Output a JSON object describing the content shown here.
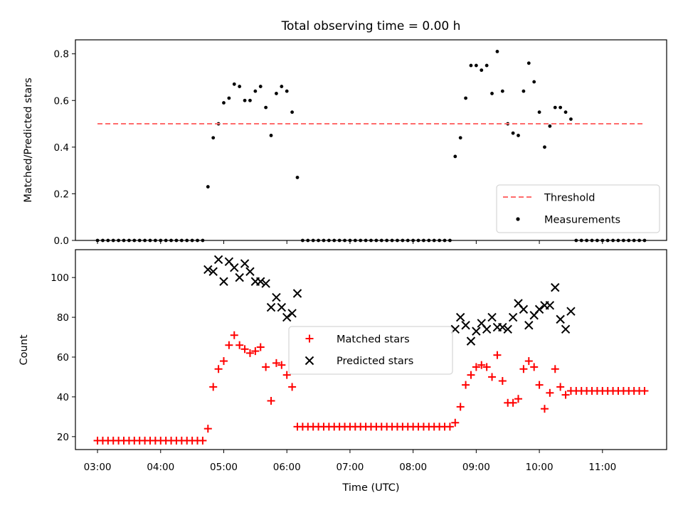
{
  "chart_data": [
    {
      "type": "scatter",
      "title": "Total observing time = 0.00 h",
      "ylabel": "Matched/Predicted stars",
      "xlim": [
        "02:39",
        "12:01"
      ],
      "ylim": [
        0,
        0.86
      ],
      "yticks": [
        0.0,
        0.2,
        0.4,
        0.6,
        0.8
      ],
      "ytick_labels": [
        "0.0",
        "0.2",
        "0.4",
        "0.6",
        "0.8"
      ],
      "legend": {
        "location": "lower right",
        "entries": [
          "Threshold",
          "Measurements"
        ]
      },
      "threshold": {
        "name": "Threshold",
        "value": 0.5,
        "color": "#ff6b6b",
        "style": "dashed",
        "x_range": [
          "03:00",
          "11:40"
        ]
      },
      "series": [
        {
          "name": "Measurements",
          "color": "#000000",
          "marker": "dot",
          "points": [
            [
              "03:00",
              0
            ],
            [
              "03:05",
              0
            ],
            [
              "03:10",
              0
            ],
            [
              "03:15",
              0
            ],
            [
              "03:20",
              0
            ],
            [
              "03:25",
              0
            ],
            [
              "03:30",
              0
            ],
            [
              "03:35",
              0
            ],
            [
              "03:40",
              0
            ],
            [
              "03:45",
              0
            ],
            [
              "03:50",
              0
            ],
            [
              "03:55",
              0
            ],
            [
              "04:00",
              0
            ],
            [
              "04:05",
              0
            ],
            [
              "04:10",
              0
            ],
            [
              "04:15",
              0
            ],
            [
              "04:20",
              0
            ],
            [
              "04:25",
              0
            ],
            [
              "04:30",
              0
            ],
            [
              "04:35",
              0
            ],
            [
              "04:40",
              0
            ],
            [
              "04:45",
              0.23
            ],
            [
              "04:50",
              0.44
            ],
            [
              "04:55",
              0.5
            ],
            [
              "05:00",
              0.59
            ],
            [
              "05:05",
              0.61
            ],
            [
              "05:10",
              0.67
            ],
            [
              "05:15",
              0.66
            ],
            [
              "05:20",
              0.6
            ],
            [
              "05:25",
              0.6
            ],
            [
              "05:30",
              0.64
            ],
            [
              "05:35",
              0.66
            ],
            [
              "05:40",
              0.57
            ],
            [
              "05:45",
              0.45
            ],
            [
              "05:50",
              0.63
            ],
            [
              "05:55",
              0.66
            ],
            [
              "06:00",
              0.64
            ],
            [
              "06:05",
              0.55
            ],
            [
              "06:10",
              0.27
            ],
            [
              "06:15",
              0
            ],
            [
              "06:20",
              0
            ],
            [
              "06:25",
              0
            ],
            [
              "06:30",
              0
            ],
            [
              "06:35",
              0
            ],
            [
              "06:40",
              0
            ],
            [
              "06:45",
              0
            ],
            [
              "06:50",
              0
            ],
            [
              "06:55",
              0
            ],
            [
              "07:00",
              0
            ],
            [
              "07:05",
              0
            ],
            [
              "07:10",
              0
            ],
            [
              "07:15",
              0
            ],
            [
              "07:20",
              0
            ],
            [
              "07:25",
              0
            ],
            [
              "07:30",
              0
            ],
            [
              "07:35",
              0
            ],
            [
              "07:40",
              0
            ],
            [
              "07:45",
              0
            ],
            [
              "07:50",
              0
            ],
            [
              "07:55",
              0
            ],
            [
              "08:00",
              0
            ],
            [
              "08:05",
              0
            ],
            [
              "08:10",
              0
            ],
            [
              "08:15",
              0
            ],
            [
              "08:20",
              0
            ],
            [
              "08:25",
              0
            ],
            [
              "08:30",
              0
            ],
            [
              "08:35",
              0
            ],
            [
              "08:40",
              0.36
            ],
            [
              "08:45",
              0.44
            ],
            [
              "08:50",
              0.61
            ],
            [
              "08:55",
              0.75
            ],
            [
              "09:00",
              0.75
            ],
            [
              "09:05",
              0.73
            ],
            [
              "09:10",
              0.75
            ],
            [
              "09:15",
              0.63
            ],
            [
              "09:20",
              0.81
            ],
            [
              "09:25",
              0.64
            ],
            [
              "09:30",
              0.5
            ],
            [
              "09:35",
              0.46
            ],
            [
              "09:40",
              0.45
            ],
            [
              "09:45",
              0.64
            ],
            [
              "09:50",
              0.76
            ],
            [
              "09:55",
              0.68
            ],
            [
              "10:00",
              0.55
            ],
            [
              "10:05",
              0.4
            ],
            [
              "10:10",
              0.49
            ],
            [
              "10:15",
              0.57
            ],
            [
              "10:20",
              0.57
            ],
            [
              "10:25",
              0.55
            ],
            [
              "10:30",
              0.52
            ],
            [
              "10:35",
              0
            ],
            [
              "10:40",
              0
            ],
            [
              "10:45",
              0
            ],
            [
              "10:50",
              0
            ],
            [
              "10:55",
              0
            ],
            [
              "11:00",
              0
            ],
            [
              "11:05",
              0
            ],
            [
              "11:10",
              0
            ],
            [
              "11:15",
              0
            ],
            [
              "11:20",
              0
            ],
            [
              "11:25",
              0
            ],
            [
              "11:30",
              0
            ],
            [
              "11:35",
              0
            ],
            [
              "11:40",
              0
            ]
          ]
        }
      ]
    },
    {
      "type": "scatter",
      "xlabel": "Time (UTC)",
      "ylabel": "Count",
      "xlim": [
        "02:39",
        "12:01"
      ],
      "ylim": [
        13.5,
        114
      ],
      "xticks": [
        "03:00",
        "04:00",
        "05:00",
        "06:00",
        "07:00",
        "08:00",
        "09:00",
        "10:00",
        "11:00"
      ],
      "yticks": [
        20,
        40,
        60,
        80,
        100
      ],
      "legend": {
        "location": "center",
        "entries": [
          "Matched stars",
          "Predicted stars"
        ]
      },
      "series": [
        {
          "name": "Matched stars",
          "color": "#ff0000",
          "marker": "plus",
          "points": [
            [
              "03:00",
              18
            ],
            [
              "03:05",
              18
            ],
            [
              "03:10",
              18
            ],
            [
              "03:15",
              18
            ],
            [
              "03:20",
              18
            ],
            [
              "03:25",
              18
            ],
            [
              "03:30",
              18
            ],
            [
              "03:35",
              18
            ],
            [
              "03:40",
              18
            ],
            [
              "03:45",
              18
            ],
            [
              "03:50",
              18
            ],
            [
              "03:55",
              18
            ],
            [
              "04:00",
              18
            ],
            [
              "04:05",
              18
            ],
            [
              "04:10",
              18
            ],
            [
              "04:15",
              18
            ],
            [
              "04:20",
              18
            ],
            [
              "04:25",
              18
            ],
            [
              "04:30",
              18
            ],
            [
              "04:35",
              18
            ],
            [
              "04:40",
              18
            ],
            [
              "04:45",
              24
            ],
            [
              "04:50",
              45
            ],
            [
              "04:55",
              54
            ],
            [
              "05:00",
              58
            ],
            [
              "05:05",
              66
            ],
            [
              "05:10",
              71
            ],
            [
              "05:15",
              66
            ],
            [
              "05:20",
              64
            ],
            [
              "05:25",
              62
            ],
            [
              "05:30",
              63
            ],
            [
              "05:35",
              65
            ],
            [
              "05:40",
              55
            ],
            [
              "05:45",
              38
            ],
            [
              "05:50",
              57
            ],
            [
              "05:55",
              56
            ],
            [
              "06:00",
              51
            ],
            [
              "06:05",
              45
            ],
            [
              "06:10",
              25
            ],
            [
              "06:15",
              25
            ],
            [
              "06:20",
              25
            ],
            [
              "06:25",
              25
            ],
            [
              "06:30",
              25
            ],
            [
              "06:35",
              25
            ],
            [
              "06:40",
              25
            ],
            [
              "06:45",
              25
            ],
            [
              "06:50",
              25
            ],
            [
              "06:55",
              25
            ],
            [
              "07:00",
              25
            ],
            [
              "07:05",
              25
            ],
            [
              "07:10",
              25
            ],
            [
              "07:15",
              25
            ],
            [
              "07:20",
              25
            ],
            [
              "07:25",
              25
            ],
            [
              "07:30",
              25
            ],
            [
              "07:35",
              25
            ],
            [
              "07:40",
              25
            ],
            [
              "07:45",
              25
            ],
            [
              "07:50",
              25
            ],
            [
              "07:55",
              25
            ],
            [
              "08:00",
              25
            ],
            [
              "08:05",
              25
            ],
            [
              "08:10",
              25
            ],
            [
              "08:15",
              25
            ],
            [
              "08:20",
              25
            ],
            [
              "08:25",
              25
            ],
            [
              "08:30",
              25
            ],
            [
              "08:35",
              25
            ],
            [
              "08:40",
              27
            ],
            [
              "08:45",
              35
            ],
            [
              "08:50",
              46
            ],
            [
              "08:55",
              51
            ],
            [
              "09:00",
              55
            ],
            [
              "09:05",
              56
            ],
            [
              "09:10",
              55
            ],
            [
              "09:15",
              50
            ],
            [
              "09:20",
              61
            ],
            [
              "09:25",
              48
            ],
            [
              "09:30",
              37
            ],
            [
              "09:35",
              37
            ],
            [
              "09:40",
              39
            ],
            [
              "09:45",
              54
            ],
            [
              "09:50",
              58
            ],
            [
              "09:55",
              55
            ],
            [
              "10:00",
              46
            ],
            [
              "10:05",
              34
            ],
            [
              "10:10",
              42
            ],
            [
              "10:15",
              54
            ],
            [
              "10:20",
              45
            ],
            [
              "10:25",
              41
            ],
            [
              "10:30",
              43
            ],
            [
              "10:35",
              43
            ],
            [
              "10:40",
              43
            ],
            [
              "10:45",
              43
            ],
            [
              "10:50",
              43
            ],
            [
              "10:55",
              43
            ],
            [
              "11:00",
              43
            ],
            [
              "11:05",
              43
            ],
            [
              "11:10",
              43
            ],
            [
              "11:15",
              43
            ],
            [
              "11:20",
              43
            ],
            [
              "11:25",
              43
            ],
            [
              "11:30",
              43
            ],
            [
              "11:35",
              43
            ],
            [
              "11:40",
              43
            ]
          ]
        },
        {
          "name": "Predicted stars",
          "color": "#000000",
          "marker": "x",
          "points": [
            [
              "04:45",
              104
            ],
            [
              "04:50",
              103
            ],
            [
              "04:55",
              109
            ],
            [
              "05:00",
              98
            ],
            [
              "05:05",
              108
            ],
            [
              "05:10",
              105
            ],
            [
              "05:15",
              100
            ],
            [
              "05:20",
              107
            ],
            [
              "05:25",
              103
            ],
            [
              "05:30",
              98
            ],
            [
              "05:35",
              98
            ],
            [
              "05:40",
              97
            ],
            [
              "05:45",
              85
            ],
            [
              "05:50",
              90
            ],
            [
              "05:55",
              85
            ],
            [
              "06:00",
              80
            ],
            [
              "06:05",
              82
            ],
            [
              "06:10",
              92
            ],
            [
              "08:40",
              74
            ],
            [
              "08:45",
              80
            ],
            [
              "08:50",
              76
            ],
            [
              "08:55",
              68
            ],
            [
              "09:00",
              73
            ],
            [
              "09:05",
              77
            ],
            [
              "09:10",
              74
            ],
            [
              "09:15",
              80
            ],
            [
              "09:20",
              75
            ],
            [
              "09:25",
              75
            ],
            [
              "09:30",
              74
            ],
            [
              "09:35",
              80
            ],
            [
              "09:40",
              87
            ],
            [
              "09:45",
              84
            ],
            [
              "09:50",
              76
            ],
            [
              "09:55",
              81
            ],
            [
              "10:00",
              84
            ],
            [
              "10:05",
              86
            ],
            [
              "10:10",
              86
            ],
            [
              "10:15",
              95
            ],
            [
              "10:20",
              79
            ],
            [
              "10:25",
              74
            ],
            [
              "10:30",
              83
            ]
          ]
        }
      ]
    }
  ]
}
